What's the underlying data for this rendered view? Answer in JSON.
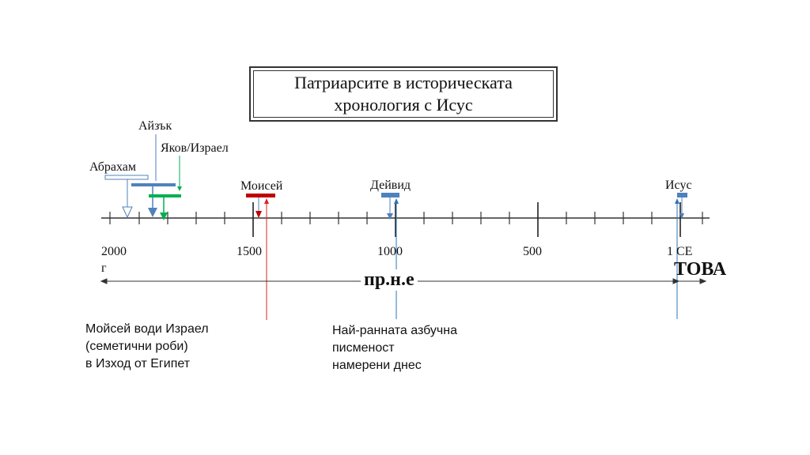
{
  "title": "Патриарсите в историческата\nхронология с Исус",
  "labels": {
    "abraham": "Абрахам",
    "isaac": "Айзък",
    "jacob": "Яков/Израел",
    "moses": "Моисей",
    "david": "Дейвид",
    "jesus": "Исус"
  },
  "axis": {
    "tick_2000": "2000",
    "tick_2000_suffix": "г",
    "tick_1500": "1500",
    "tick_1000": "1000",
    "tick_500": "500",
    "tick_1ce": "1 CE"
  },
  "eras": {
    "bce": "пр.н.е",
    "now": "ТОВА"
  },
  "notes": {
    "exodus": "Мойсей води Израел\n(семетични роби)\nв Изход от Египет",
    "alphabet": "Най-ранната азбучна\nписменост\nнамерени днес"
  },
  "colors": {
    "abraham": "#4f81bd",
    "isaac": "#4f81bd",
    "jacob": "#00b050",
    "moses": "#c00000",
    "david": "#4f81bd",
    "jesus": "#4f81bd",
    "red_line": "#e02020",
    "blue_line": "#2e75b6"
  }
}
